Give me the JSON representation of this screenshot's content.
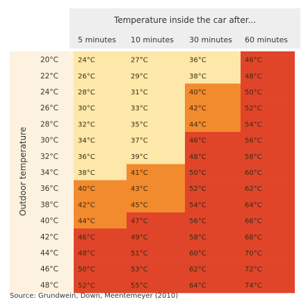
{
  "chart_data": {
    "type": "heatmap",
    "title": "Temperature inside the car after...",
    "ylabel": "Outdoor temperature",
    "columns": [
      "5 minutes",
      "10 minutes",
      "30 minutes",
      "60 minutes"
    ],
    "rows": [
      "20°C",
      "22°C",
      "24°C",
      "26°C",
      "28°C",
      "30°C",
      "32°C",
      "34°C",
      "36°C",
      "38°C",
      "40°C",
      "42°C",
      "44°C",
      "46°C",
      "48°C"
    ],
    "values": [
      [
        24,
        27,
        36,
        46
      ],
      [
        26,
        29,
        38,
        48
      ],
      [
        28,
        31,
        40,
        50
      ],
      [
        30,
        33,
        42,
        52
      ],
      [
        32,
        35,
        44,
        54
      ],
      [
        34,
        37,
        46,
        56
      ],
      [
        36,
        39,
        48,
        58
      ],
      [
        38,
        41,
        50,
        60
      ],
      [
        40,
        43,
        52,
        62
      ],
      [
        42,
        45,
        54,
        64
      ],
      [
        44,
        47,
        56,
        66
      ],
      [
        46,
        49,
        58,
        68
      ],
      [
        48,
        51,
        60,
        70
      ],
      [
        50,
        53,
        62,
        72
      ],
      [
        52,
        55,
        64,
        74
      ]
    ],
    "unit": "°C",
    "color_bands": [
      {
        "min": 0,
        "max": 39,
        "color": "#fde8a9"
      },
      {
        "min": 40,
        "max": 45,
        "color": "#f28a2e"
      },
      {
        "min": 46,
        "max": 100,
        "color": "#e0452a"
      }
    ],
    "header_bg": "#eeeeee",
    "row_header_bg": "#fdf2df"
  },
  "source": "Source: Grundwein, Down, Meentemeyer (2010)"
}
